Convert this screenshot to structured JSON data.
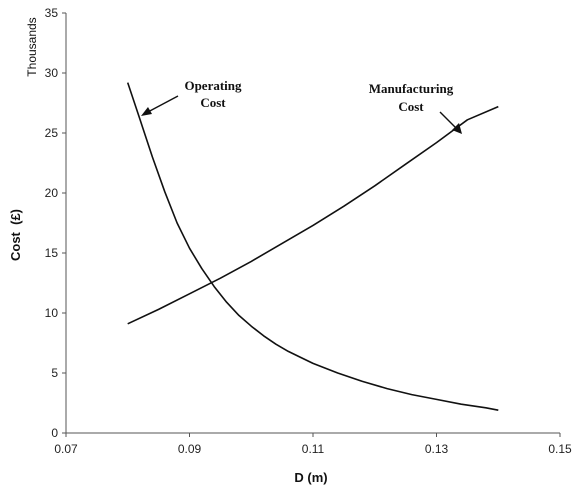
{
  "chart_data": {
    "type": "line",
    "xlabel": "D (m)",
    "ylabel": "Cost  (£)",
    "y_units": "Thousands",
    "xlim": [
      0.07,
      0.15
    ],
    "ylim": [
      0,
      35
    ],
    "x_ticks": [
      "0.07",
      "0.09",
      "0.11",
      "0.13",
      "0.15"
    ],
    "y_ticks": [
      "0",
      "5",
      "10",
      "15",
      "20",
      "25",
      "30",
      "35"
    ],
    "grid": false,
    "series": [
      {
        "name": "Operating Cost",
        "x": [
          0.08,
          0.082,
          0.084,
          0.086,
          0.088,
          0.09,
          0.092,
          0.094,
          0.096,
          0.098,
          0.1,
          0.102,
          0.104,
          0.106,
          0.108,
          0.11,
          0.114,
          0.118,
          0.122,
          0.126,
          0.13,
          0.134,
          0.138,
          0.14
        ],
        "y": [
          29.2,
          26.1,
          23.0,
          20.1,
          17.5,
          15.4,
          13.7,
          12.2,
          10.9,
          9.8,
          8.9,
          8.1,
          7.4,
          6.8,
          6.3,
          5.8,
          5.0,
          4.3,
          3.7,
          3.2,
          2.8,
          2.4,
          2.1,
          1.9
        ]
      },
      {
        "name": "Manufacturing Cost",
        "x": [
          0.08,
          0.085,
          0.09,
          0.095,
          0.1,
          0.105,
          0.11,
          0.115,
          0.12,
          0.125,
          0.13,
          0.135,
          0.14
        ],
        "y": [
          9.1,
          10.3,
          11.6,
          12.9,
          14.3,
          15.8,
          17.3,
          18.9,
          20.6,
          22.4,
          24.2,
          26.1,
          27.2
        ]
      }
    ],
    "annotations": [
      {
        "lines": [
          "Operating",
          "Cost"
        ],
        "target_series": "Operating Cost",
        "arrow_to": {
          "x": 0.0815,
          "y": 26.6
        }
      },
      {
        "lines": [
          "Manufacturing",
          "Cost"
        ],
        "target_series": "Manufacturing Cost",
        "arrow_to": {
          "x": 0.1325,
          "y": 24.9
        }
      }
    ]
  }
}
